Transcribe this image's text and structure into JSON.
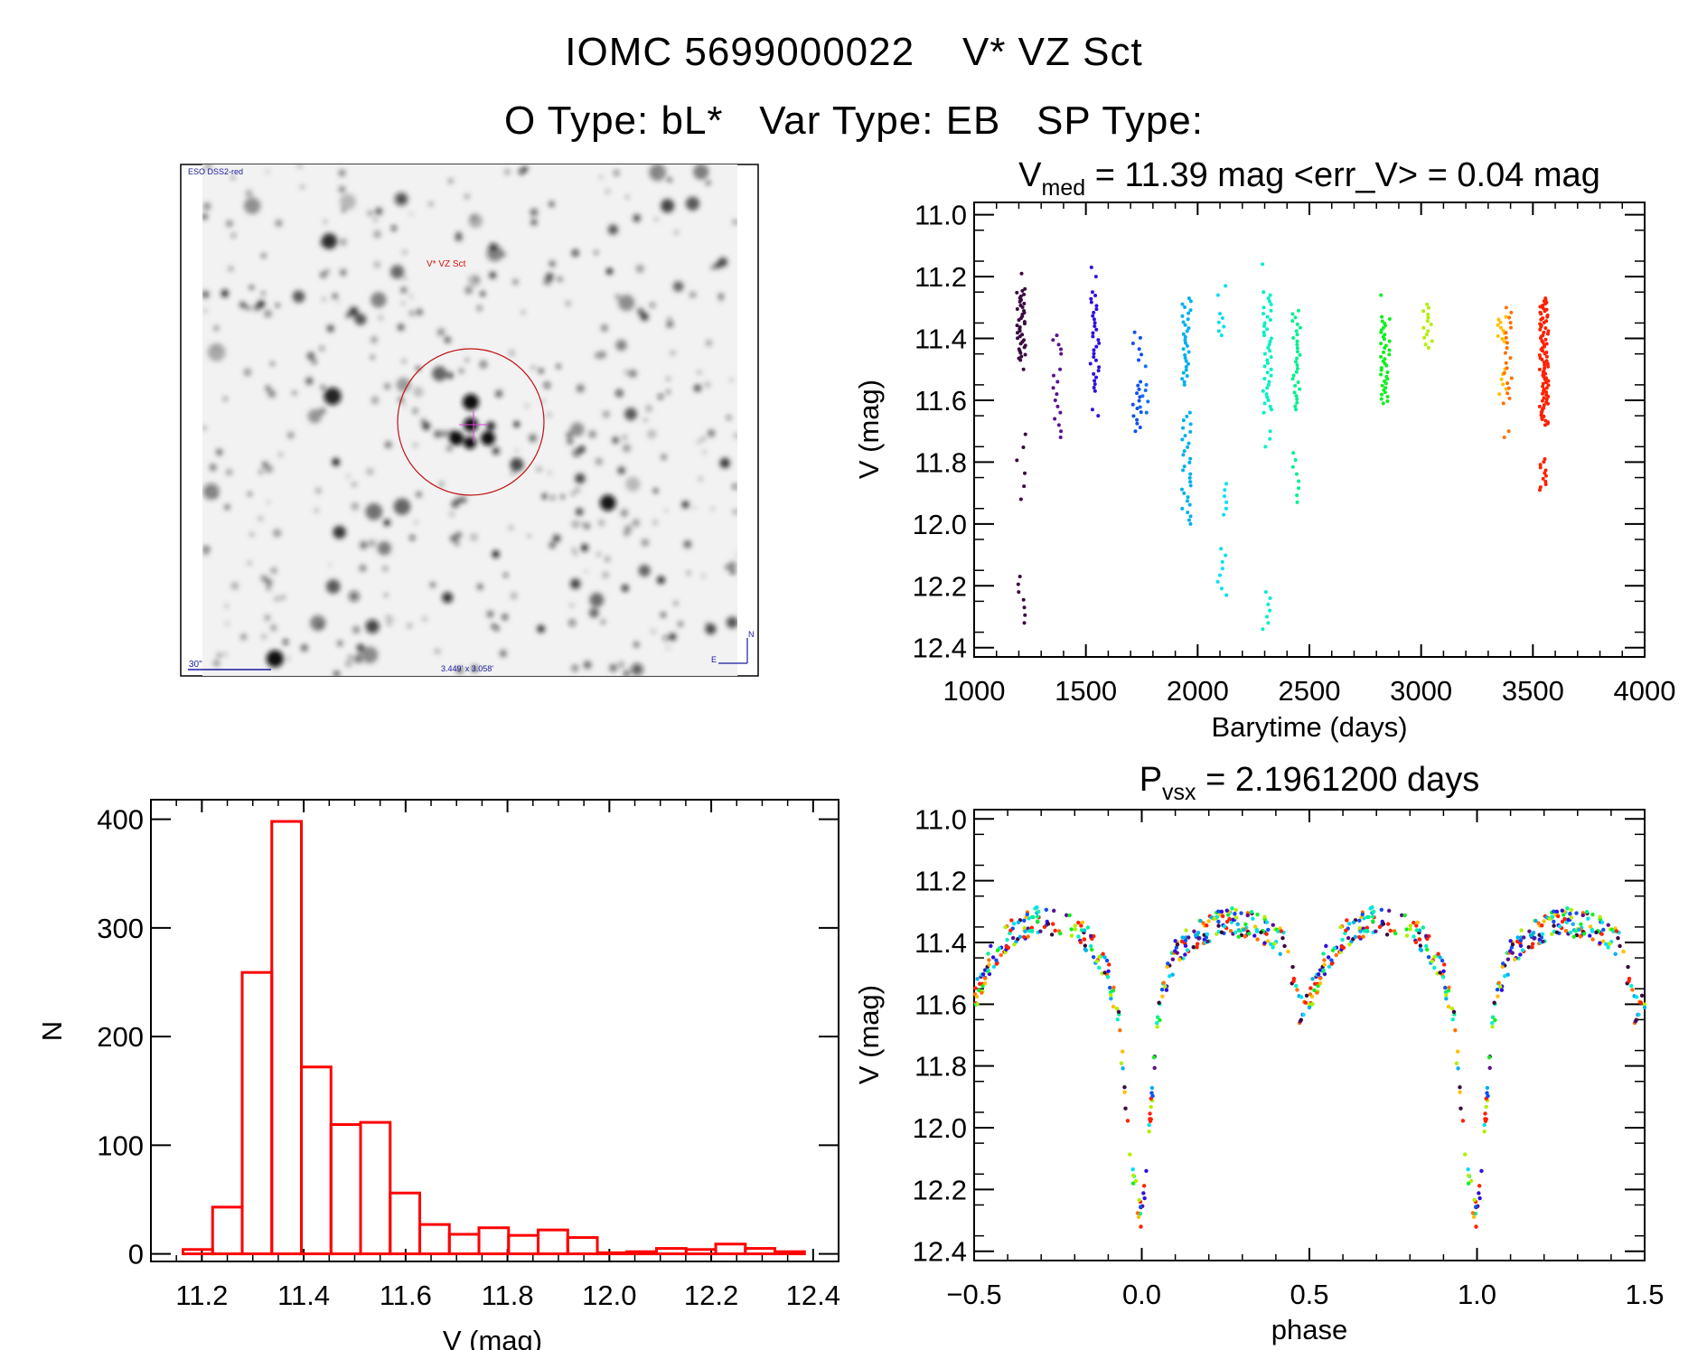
{
  "header": {
    "line1": "IOMC 5699000022    V* VZ Sct",
    "line2": "O Type: bL*   Var Type: EB   SP Type:"
  },
  "finder": {
    "survey_label": "ESO DSS2-red",
    "target_label": "V* VZ Sct",
    "scale_label": "30\"",
    "fov_label": "3.449' x 3.058'",
    "north_label": "N",
    "east_label": "E",
    "label_color": "#1a1aa0",
    "target_color": "#d01010"
  },
  "chart_data": [
    {
      "id": "lightcurve",
      "type": "scatter",
      "title_main": "V",
      "title_sub": "med",
      "title_rest": " = 11.39 mag <err_V> = 0.04 mag",
      "xlabel": "Barytime (days)",
      "ylabel": "V (mag)",
      "xlim": [
        1000,
        4000
      ],
      "ylim": [
        10.96,
        12.43
      ],
      "y_inverted": true,
      "xticks": [
        1000,
        1500,
        2000,
        2500,
        3000,
        3500,
        4000
      ],
      "yticks": [
        "11.0",
        "11.2",
        "11.4",
        "11.6",
        "11.8",
        "12.0",
        "12.2",
        "12.4"
      ],
      "clusters": [
        {
          "t": 1210,
          "color": "#3a0a40",
          "ranges": [
            [
              11.24,
              11.47,
              40
            ],
            [
              11.19,
              11.19,
              1
            ],
            [
              11.5,
              11.5,
              1
            ],
            [
              11.71,
              11.92,
              6
            ],
            [
              12.17,
              12.32,
              7
            ]
          ]
        },
        {
          "t": 1370,
          "color": "#5a1090",
          "ranges": [
            [
              11.39,
              11.45,
              5
            ],
            [
              11.5,
              11.72,
              12
            ]
          ]
        },
        {
          "t": 1540,
          "color": "#3010e0",
          "ranges": [
            [
              11.17,
              11.2,
              2
            ],
            [
              11.25,
              11.57,
              30
            ],
            [
              11.63,
              11.65,
              2
            ]
          ]
        },
        {
          "t": 1730,
          "color": "#1050f0",
          "ranges": [
            [
              11.38,
              11.47,
              6
            ],
            [
              11.54,
              11.7,
              14
            ]
          ]
        },
        {
          "t": 1760,
          "color": "#1070f0",
          "ranges": [
            [
              11.49,
              11.49,
              1
            ],
            [
              11.55,
              11.64,
              6
            ]
          ]
        },
        {
          "t": 1950,
          "color": "#00b0f0",
          "ranges": [
            [
              11.27,
              11.55,
              30
            ],
            [
              11.64,
              12.0,
              30
            ]
          ]
        },
        {
          "t": 2110,
          "color": "#00e0f0",
          "ranges": [
            [
              11.23,
              11.26,
              2
            ],
            [
              11.32,
              11.39,
              6
            ],
            [
              11.87,
              11.97,
              6
            ],
            [
              12.08,
              12.23,
              8
            ]
          ]
        },
        {
          "t": 2310,
          "color": "#00f0c8",
          "ranges": [
            [
              11.16,
              11.16,
              1
            ],
            [
              11.25,
              11.64,
              40
            ],
            [
              11.7,
              11.75,
              3
            ],
            [
              12.22,
              12.34,
              7
            ]
          ]
        },
        {
          "t": 2440,
          "color": "#00f090",
          "ranges": [
            [
              11.31,
              11.63,
              30
            ],
            [
              11.77,
              11.93,
              8
            ]
          ]
        },
        {
          "t": 2840,
          "color": "#10f020",
          "ranges": [
            [
              11.26,
              11.26,
              1
            ],
            [
              11.33,
              11.61,
              40
            ]
          ]
        },
        {
          "t": 3030,
          "color": "#b0f000",
          "ranges": [
            [
              11.29,
              11.43,
              14
            ]
          ]
        },
        {
          "t": 3360,
          "color": "#ffc000",
          "ranges": [
            [
              11.33,
              11.41,
              10
            ],
            [
              11.5,
              11.58,
              6
            ]
          ]
        },
        {
          "t": 3385,
          "color": "#ff7000",
          "ranges": [
            [
              11.3,
              11.61,
              20
            ],
            [
              11.7,
              11.72,
              2
            ]
          ]
        },
        {
          "t": 3550,
          "color": "#ff2000",
          "ranges": [
            [
              11.27,
              11.68,
              90
            ],
            [
              11.79,
              11.89,
              12
            ]
          ]
        }
      ]
    },
    {
      "id": "phased",
      "type": "scatter",
      "title_main": "P",
      "title_sub": "vsx",
      "title_rest": " = 2.1961200 days",
      "xlabel": "phase",
      "ylabel": "V (mag)",
      "xlim": [
        -0.5,
        1.5
      ],
      "ylim": [
        10.97,
        12.43
      ],
      "y_inverted": true,
      "xticks": [
        "−0.5",
        "0.0",
        "0.5",
        "1.0",
        "1.5"
      ],
      "xtick_values": [
        -0.5,
        0,
        0.5,
        1,
        1.5
      ],
      "yticks": [
        "11.0",
        "11.2",
        "11.4",
        "11.6",
        "11.8",
        "12.0",
        "12.2",
        "12.4"
      ],
      "model_curve": [
        [
          0.0,
          12.3
        ],
        [
          0.02,
          12.05
        ],
        [
          0.04,
          11.75
        ],
        [
          0.06,
          11.55
        ],
        [
          0.1,
          11.44
        ],
        [
          0.15,
          11.38
        ],
        [
          0.25,
          11.33
        ],
        [
          0.35,
          11.35
        ],
        [
          0.42,
          11.4
        ],
        [
          0.45,
          11.5
        ],
        [
          0.47,
          11.62
        ],
        [
          0.5,
          11.58
        ],
        [
          0.55,
          11.45
        ],
        [
          0.6,
          11.38
        ],
        [
          0.7,
          11.32
        ],
        [
          0.8,
          11.35
        ],
        [
          0.85,
          11.4
        ],
        [
          0.9,
          11.5
        ],
        [
          0.93,
          11.65
        ],
        [
          0.95,
          11.88
        ],
        [
          0.97,
          12.15
        ],
        [
          1.0,
          12.3
        ]
      ],
      "colors": [
        "#3a0a40",
        "#5a1090",
        "#3010e0",
        "#1050f0",
        "#00b0f0",
        "#00e0f0",
        "#00f0c8",
        "#00f090",
        "#10f020",
        "#b0f000",
        "#ffc000",
        "#ff7000",
        "#ff2000",
        "#ff2000"
      ]
    },
    {
      "id": "histogram",
      "type": "bar",
      "xlabel": "V (mag)",
      "ylabel": "N",
      "xlim": [
        11.1,
        12.45
      ],
      "ylim": [
        -7,
        418
      ],
      "xticks": [
        "11.2",
        "11.4",
        "11.6",
        "11.8",
        "12.0",
        "12.2",
        "12.4"
      ],
      "yticks": [
        "0",
        "100",
        "200",
        "300",
        "400"
      ],
      "bin_start": 11.163,
      "bin_width": 0.0581,
      "values": [
        4,
        43,
        259,
        398,
        172,
        119,
        121,
        56,
        27,
        18,
        24,
        17,
        22,
        15,
        1,
        2,
        5,
        4,
        9,
        5,
        2
      ],
      "bar_color": "#ff0000"
    }
  ]
}
